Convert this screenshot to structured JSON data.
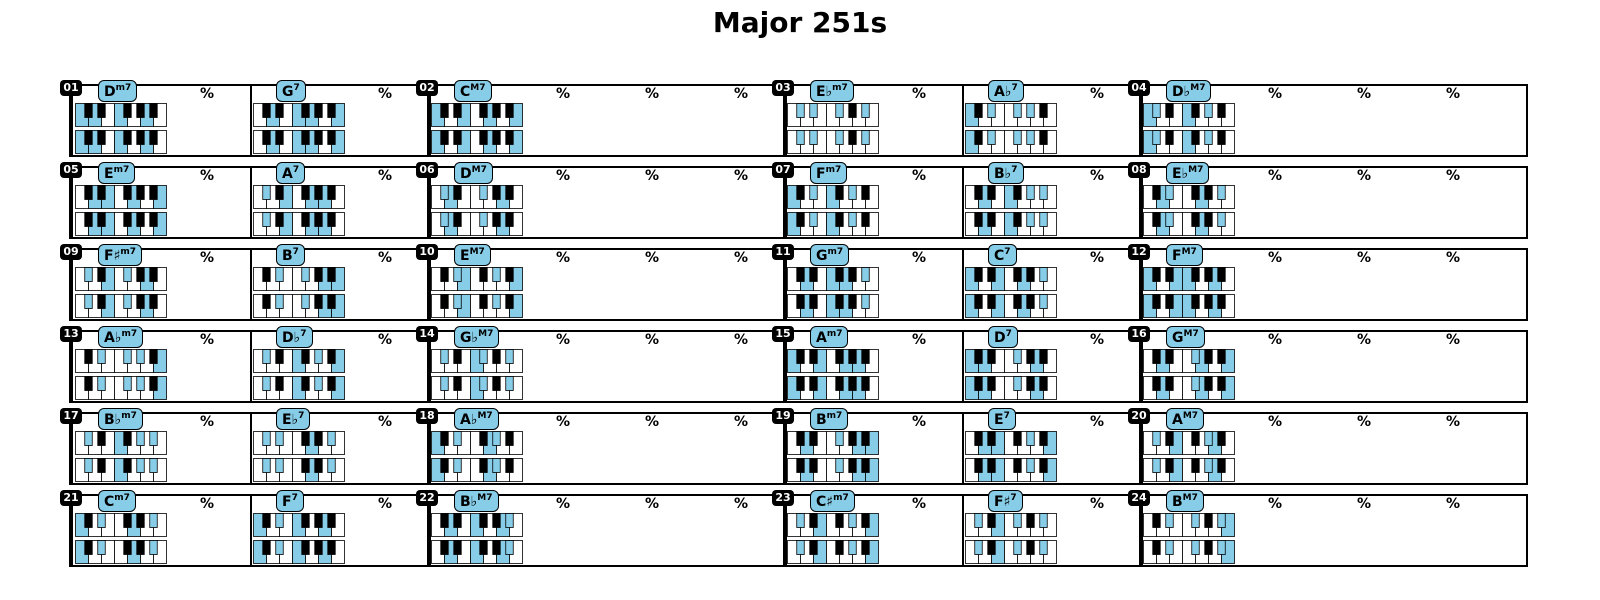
{
  "title": "Major 251s",
  "repeat_symbol": "%",
  "colors": {
    "key_highlight": "#87cde8",
    "black_key": "#000000",
    "white_key": "#ffffff",
    "badge_bg": "#000000",
    "badge_text": "#ffffff"
  },
  "rows": [
    {
      "groups": [
        {
          "number": "01",
          "chords": [
            {
              "root": "D",
              "quality": "m7"
            },
            {
              "root": "G",
              "quality": "7"
            }
          ]
        },
        {
          "number": "02",
          "chords": [
            {
              "root": "C",
              "quality": "M7"
            }
          ]
        },
        {
          "number": "03",
          "chords": [
            {
              "root": "E♭",
              "quality": "m7"
            },
            {
              "root": "A♭",
              "quality": "7"
            }
          ]
        },
        {
          "number": "04",
          "chords": [
            {
              "root": "D♭",
              "quality": "M7"
            }
          ]
        }
      ]
    },
    {
      "groups": [
        {
          "number": "05",
          "chords": [
            {
              "root": "E",
              "quality": "m7"
            },
            {
              "root": "A",
              "quality": "7"
            }
          ]
        },
        {
          "number": "06",
          "chords": [
            {
              "root": "D",
              "quality": "M7"
            }
          ]
        },
        {
          "number": "07",
          "chords": [
            {
              "root": "F",
              "quality": "m7"
            },
            {
              "root": "B♭",
              "quality": "7"
            }
          ]
        },
        {
          "number": "08",
          "chords": [
            {
              "root": "E♭",
              "quality": "M7"
            }
          ]
        }
      ]
    },
    {
      "groups": [
        {
          "number": "09",
          "chords": [
            {
              "root": "F♯",
              "quality": "m7"
            },
            {
              "root": "B",
              "quality": "7"
            }
          ]
        },
        {
          "number": "10",
          "chords": [
            {
              "root": "E",
              "quality": "M7"
            }
          ]
        },
        {
          "number": "11",
          "chords": [
            {
              "root": "G",
              "quality": "m7"
            },
            {
              "root": "C",
              "quality": "7"
            }
          ]
        },
        {
          "number": "12",
          "chords": [
            {
              "root": "F",
              "quality": "M7"
            }
          ]
        }
      ]
    },
    {
      "groups": [
        {
          "number": "13",
          "chords": [
            {
              "root": "A♭",
              "quality": "m7"
            },
            {
              "root": "D♭",
              "quality": "7"
            }
          ]
        },
        {
          "number": "14",
          "chords": [
            {
              "root": "G♭",
              "quality": "M7"
            }
          ]
        },
        {
          "number": "15",
          "chords": [
            {
              "root": "A",
              "quality": "m7"
            },
            {
              "root": "D",
              "quality": "7"
            }
          ]
        },
        {
          "number": "16",
          "chords": [
            {
              "root": "G",
              "quality": "M7"
            }
          ]
        }
      ]
    },
    {
      "groups": [
        {
          "number": "17",
          "chords": [
            {
              "root": "B♭",
              "quality": "m7"
            },
            {
              "root": "E♭",
              "quality": "7"
            }
          ]
        },
        {
          "number": "18",
          "chords": [
            {
              "root": "A♭",
              "quality": "M7"
            }
          ]
        },
        {
          "number": "19",
          "chords": [
            {
              "root": "B",
              "quality": "m7"
            },
            {
              "root": "E",
              "quality": "7"
            }
          ]
        },
        {
          "number": "20",
          "chords": [
            {
              "root": "A",
              "quality": "M7"
            }
          ]
        }
      ]
    },
    {
      "groups": [
        {
          "number": "21",
          "chords": [
            {
              "root": "C",
              "quality": "m7"
            },
            {
              "root": "F",
              "quality": "7"
            }
          ]
        },
        {
          "number": "22",
          "chords": [
            {
              "root": "B♭",
              "quality": "M7"
            }
          ]
        },
        {
          "number": "23",
          "chords": [
            {
              "root": "C♯",
              "quality": "m7"
            },
            {
              "root": "F♯",
              "quality": "7"
            }
          ]
        },
        {
          "number": "24",
          "chords": [
            {
              "root": "B",
              "quality": "M7"
            }
          ]
        }
      ]
    }
  ]
}
